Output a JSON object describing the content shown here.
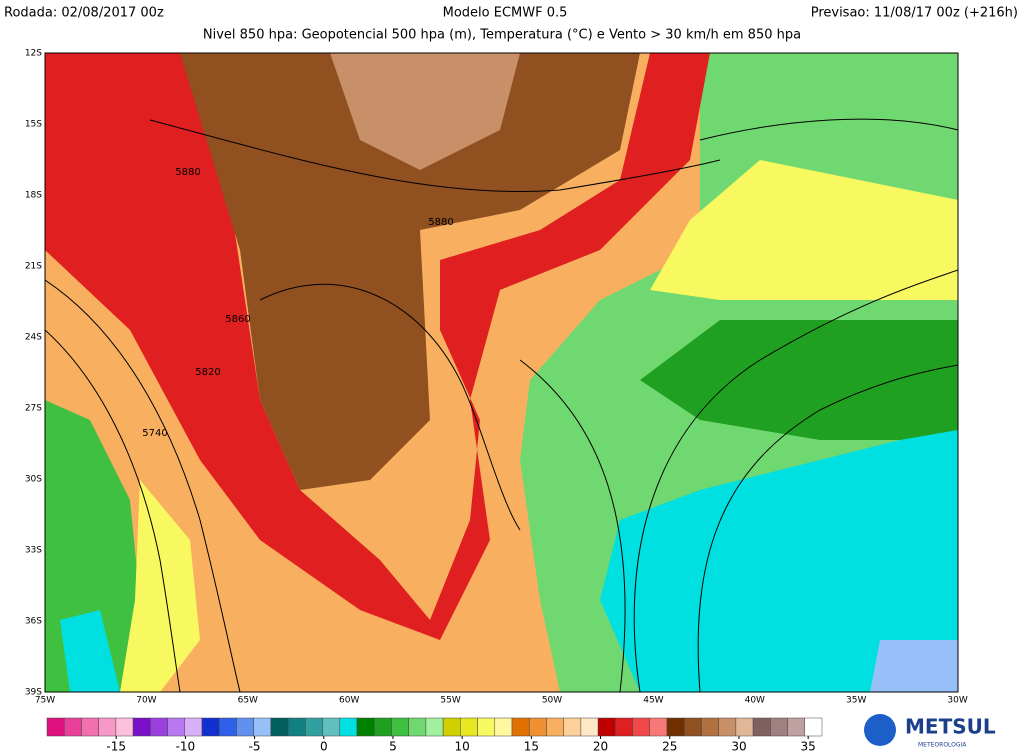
{
  "header": {
    "run": "Rodada: 02/08/2017 00z",
    "model": "Modelo ECMWF 0.5",
    "forecast": "Previsao: 11/08/17 00z (+216h)",
    "subtitle": "Nivel 850 hpa: Geopotencial 500 hpa (m), Temperatura (°C) e Vento > 30 km/h em 850 hpa"
  },
  "map": {
    "lat_labels": [
      "12S",
      "15S",
      "18S",
      "21S",
      "24S",
      "27S",
      "30S",
      "33S",
      "36S",
      "39S"
    ],
    "lon_labels": [
      "75W",
      "70W",
      "65W",
      "60W",
      "55W",
      "50W",
      "45W",
      "40W",
      "35W",
      "30W"
    ],
    "contour_labels": [
      "5880",
      "5880",
      "5860",
      "5820",
      "5740"
    ]
  },
  "colorbar": {
    "lim": [
      -20,
      36
    ],
    "ticks": [
      -15,
      -10,
      -5,
      0,
      5,
      10,
      15,
      20,
      25,
      30,
      35
    ],
    "colors": [
      "#e0107f",
      "#e8409a",
      "#f070b0",
      "#f898c8",
      "#fcc0dc",
      "#7a10c8",
      "#9a40e0",
      "#b878f0",
      "#d8b0f8",
      "#1030d0",
      "#3060e8",
      "#6090f0",
      "#98c0f8",
      "#006060",
      "#108080",
      "#30a0a0",
      "#60c0c0",
      "#00e0e0",
      "#008000",
      "#20a020",
      "#40c040",
      "#70d870",
      "#a0f0a0",
      "#d0d000",
      "#e8e820",
      "#f8f860",
      "#fff8a0",
      "#e07000",
      "#f09030",
      "#f8b060",
      "#fcd098",
      "#ffe8c8",
      "#c00000",
      "#e02020",
      "#f04848",
      "#f87878",
      "#703000",
      "#905020",
      "#b07040",
      "#c89068",
      "#e0b898",
      "#806060",
      "#a08080",
      "#c0a0a0",
      "#ffffff"
    ]
  },
  "logo": {
    "name": "METSUL",
    "sub": "METEOROLOGIA"
  }
}
